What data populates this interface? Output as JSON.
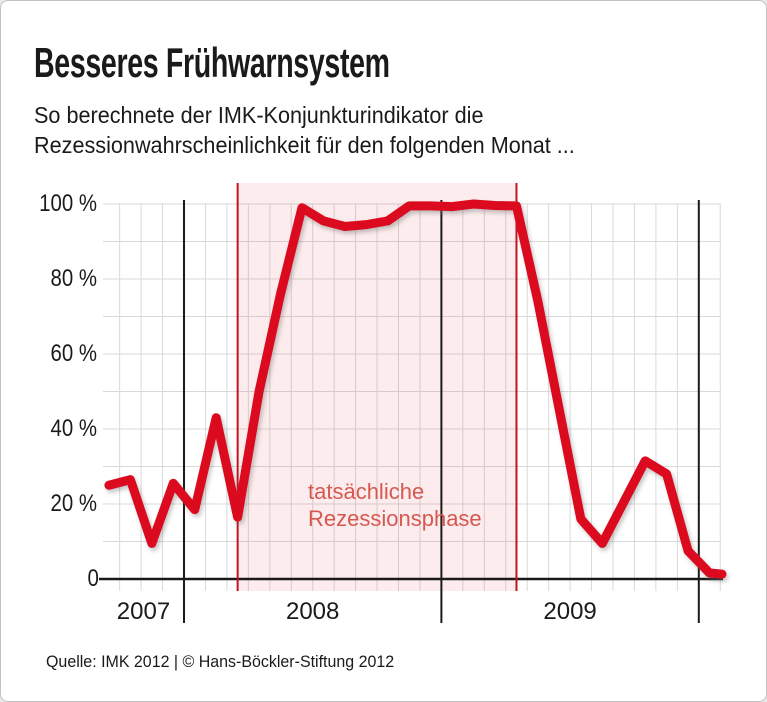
{
  "header": {
    "title": "Besseres Frühwarnsystem",
    "subtitle_line1": "So berechnete der IMK-Konjunkturindikator die",
    "subtitle_line2": "Rezessionwahrscheinlichkeit für den folgenden Monat ..."
  },
  "footer": {
    "source": "Quelle: IMK 2012 | © Hans-Böckler-Stiftung 2012"
  },
  "chart_data": {
    "type": "line",
    "title": "Besseres Frühwarnsystem",
    "subtitle": "So berechnete der IMK-Konjunkturindikator die Rezessionwahrscheinlichkeit für den folgenden Monat ...",
    "unit": "%",
    "ylim": [
      0,
      100
    ],
    "grid": "vertical monthly gridlines, horizontal gridlines every 10%",
    "x": [
      "2007-09",
      "2007-10",
      "2007-11",
      "2007-12",
      "2008-01",
      "2008-02",
      "2008-03",
      "2008-04",
      "2008-05",
      "2008-06",
      "2008-07",
      "2008-08",
      "2008-09",
      "2008-10",
      "2008-11",
      "2008-12",
      "2009-01",
      "2009-02",
      "2009-03",
      "2009-04",
      "2009-05",
      "2009-06",
      "2009-07",
      "2009-08",
      "2009-09",
      "2009-10",
      "2009-11",
      "2009-12",
      "2010-01",
      "2010-02"
    ],
    "values": [
      25,
      26.5,
      9.5,
      25.5,
      18.5,
      43,
      16.5,
      50,
      76,
      99,
      95.5,
      94,
      94.5,
      95.5,
      99.5,
      99.5,
      99.3,
      100,
      99.6,
      99.5,
      74,
      45,
      16,
      9.5,
      20.5,
      31.5,
      28,
      7.5,
      1.6,
      1.3
    ],
    "y_ticks": [
      {
        "value": 100,
        "label": "100 %"
      },
      {
        "value": 80,
        "label": "80 %"
      },
      {
        "value": 60,
        "label": "60 %"
      },
      {
        "value": 40,
        "label": "40 %"
      },
      {
        "value": 20,
        "label": "20 %"
      },
      {
        "value": 0,
        "label": "0"
      }
    ],
    "x_year_labels": [
      "2007",
      "2008",
      "2009"
    ],
    "year_boundaries": [
      "2008-01",
      "2009-01",
      "2010-01"
    ],
    "recession_band": {
      "start_month": "2008-03",
      "end_month": "2009-04",
      "annotation_line1": "tatsächliche",
      "annotation_line2": "Rezessionsphase"
    },
    "colors": {
      "line": "#db0a1e",
      "band": "rgba(219,10,30,0.08)",
      "band_border": "#c2131f",
      "annotation_text": "#d75850",
      "grid": "#d9d9d9",
      "axis": "#1a1a1a"
    }
  }
}
